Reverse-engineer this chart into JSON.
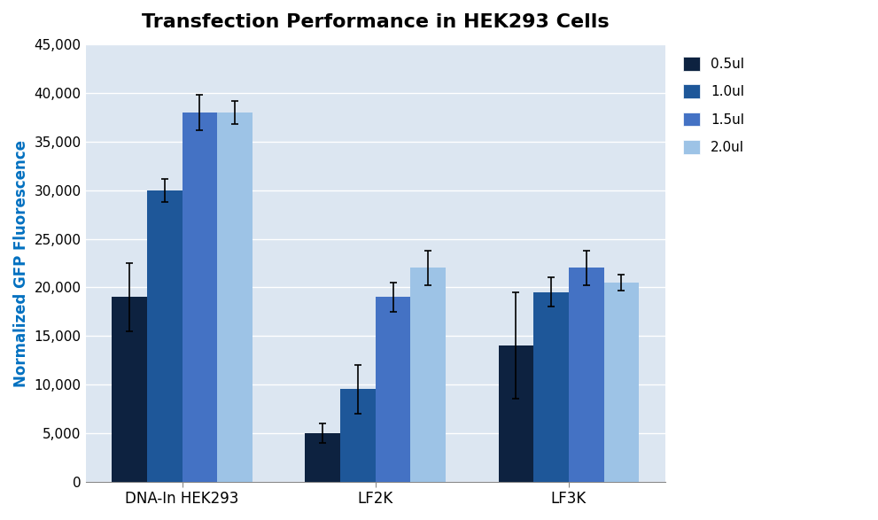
{
  "title": "Transfection Performance in HEK293 Cells",
  "ylabel": "Normalized GFP Fluorescence",
  "groups": [
    "DNA-In HEK293",
    "LF2K",
    "LF3K"
  ],
  "series_labels": [
    "0.5ul",
    "1.0ul",
    "1.5ul",
    "2.0ul"
  ],
  "values": [
    [
      19000,
      30000,
      38000,
      38000
    ],
    [
      5000,
      9500,
      19000,
      22000
    ],
    [
      14000,
      19500,
      22000,
      20500
    ]
  ],
  "errors": [
    [
      3500,
      1200,
      1800,
      1200
    ],
    [
      1000,
      2500,
      1500,
      1800
    ],
    [
      5500,
      1500,
      1800,
      800
    ]
  ],
  "colors": [
    "#0d2240",
    "#1e5799",
    "#4472c4",
    "#9dc3e6"
  ],
  "ylim": [
    0,
    45000
  ],
  "yticks": [
    0,
    5000,
    10000,
    15000,
    20000,
    25000,
    30000,
    35000,
    40000,
    45000
  ],
  "plot_bg_color": "#dce6f1",
  "fig_bg_color": "#ffffff",
  "title_fontsize": 16,
  "axis_label_color": "#0070c0",
  "axis_label_fontsize": 12,
  "grid_color": "#ffffff",
  "tick_fontsize": 11,
  "xtick_fontsize": 12
}
